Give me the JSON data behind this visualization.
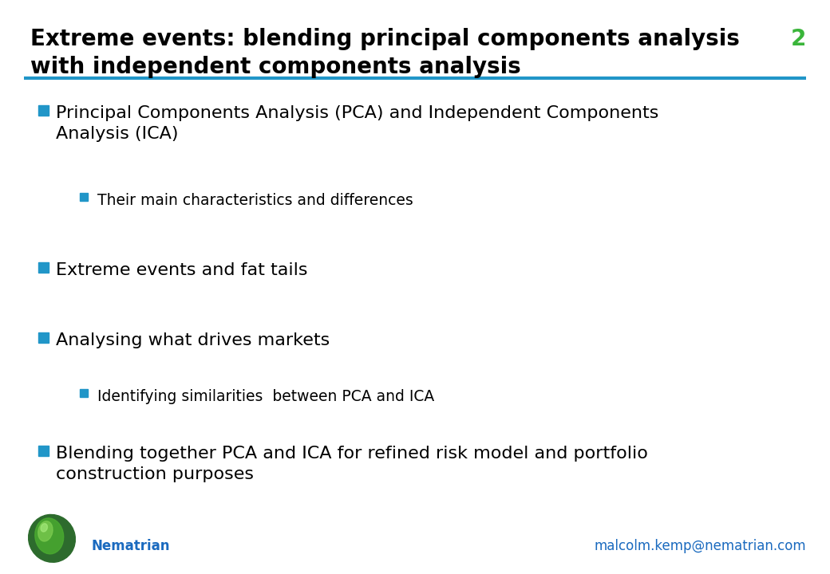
{
  "title_line1": "Extreme events: blending principal components analysis",
  "title_line2": "with independent components analysis",
  "slide_number": "2",
  "title_color": "#000000",
  "slide_number_color": "#3ab53a",
  "separator_color": "#2196c8",
  "background_color": "#ffffff",
  "bullet_color": "#2196c8",
  "footer_text_color": "#1a6abf",
  "footer_brand": "Nematrian",
  "footer_email": "malcolm.kemp@nematrian.com",
  "bullets": [
    {
      "level": 1,
      "text": "Principal Components Analysis (PCA) and Independent Components\nAnalysis (ICA)"
    },
    {
      "level": 2,
      "text": "Their main characteristics and differences"
    },
    {
      "level": 1,
      "text": "Extreme events and fat tails"
    },
    {
      "level": 1,
      "text": "Analysing what drives markets"
    },
    {
      "level": 2,
      "text": "Identifying similarities  between PCA and ICA"
    },
    {
      "level": 1,
      "text": "Blending together PCA and ICA for refined risk model and portfolio\nconstruction purposes"
    }
  ],
  "title_fontsize": 20,
  "bullet1_fontsize": 16,
  "bullet2_fontsize": 13.5,
  "footer_fontsize": 12
}
